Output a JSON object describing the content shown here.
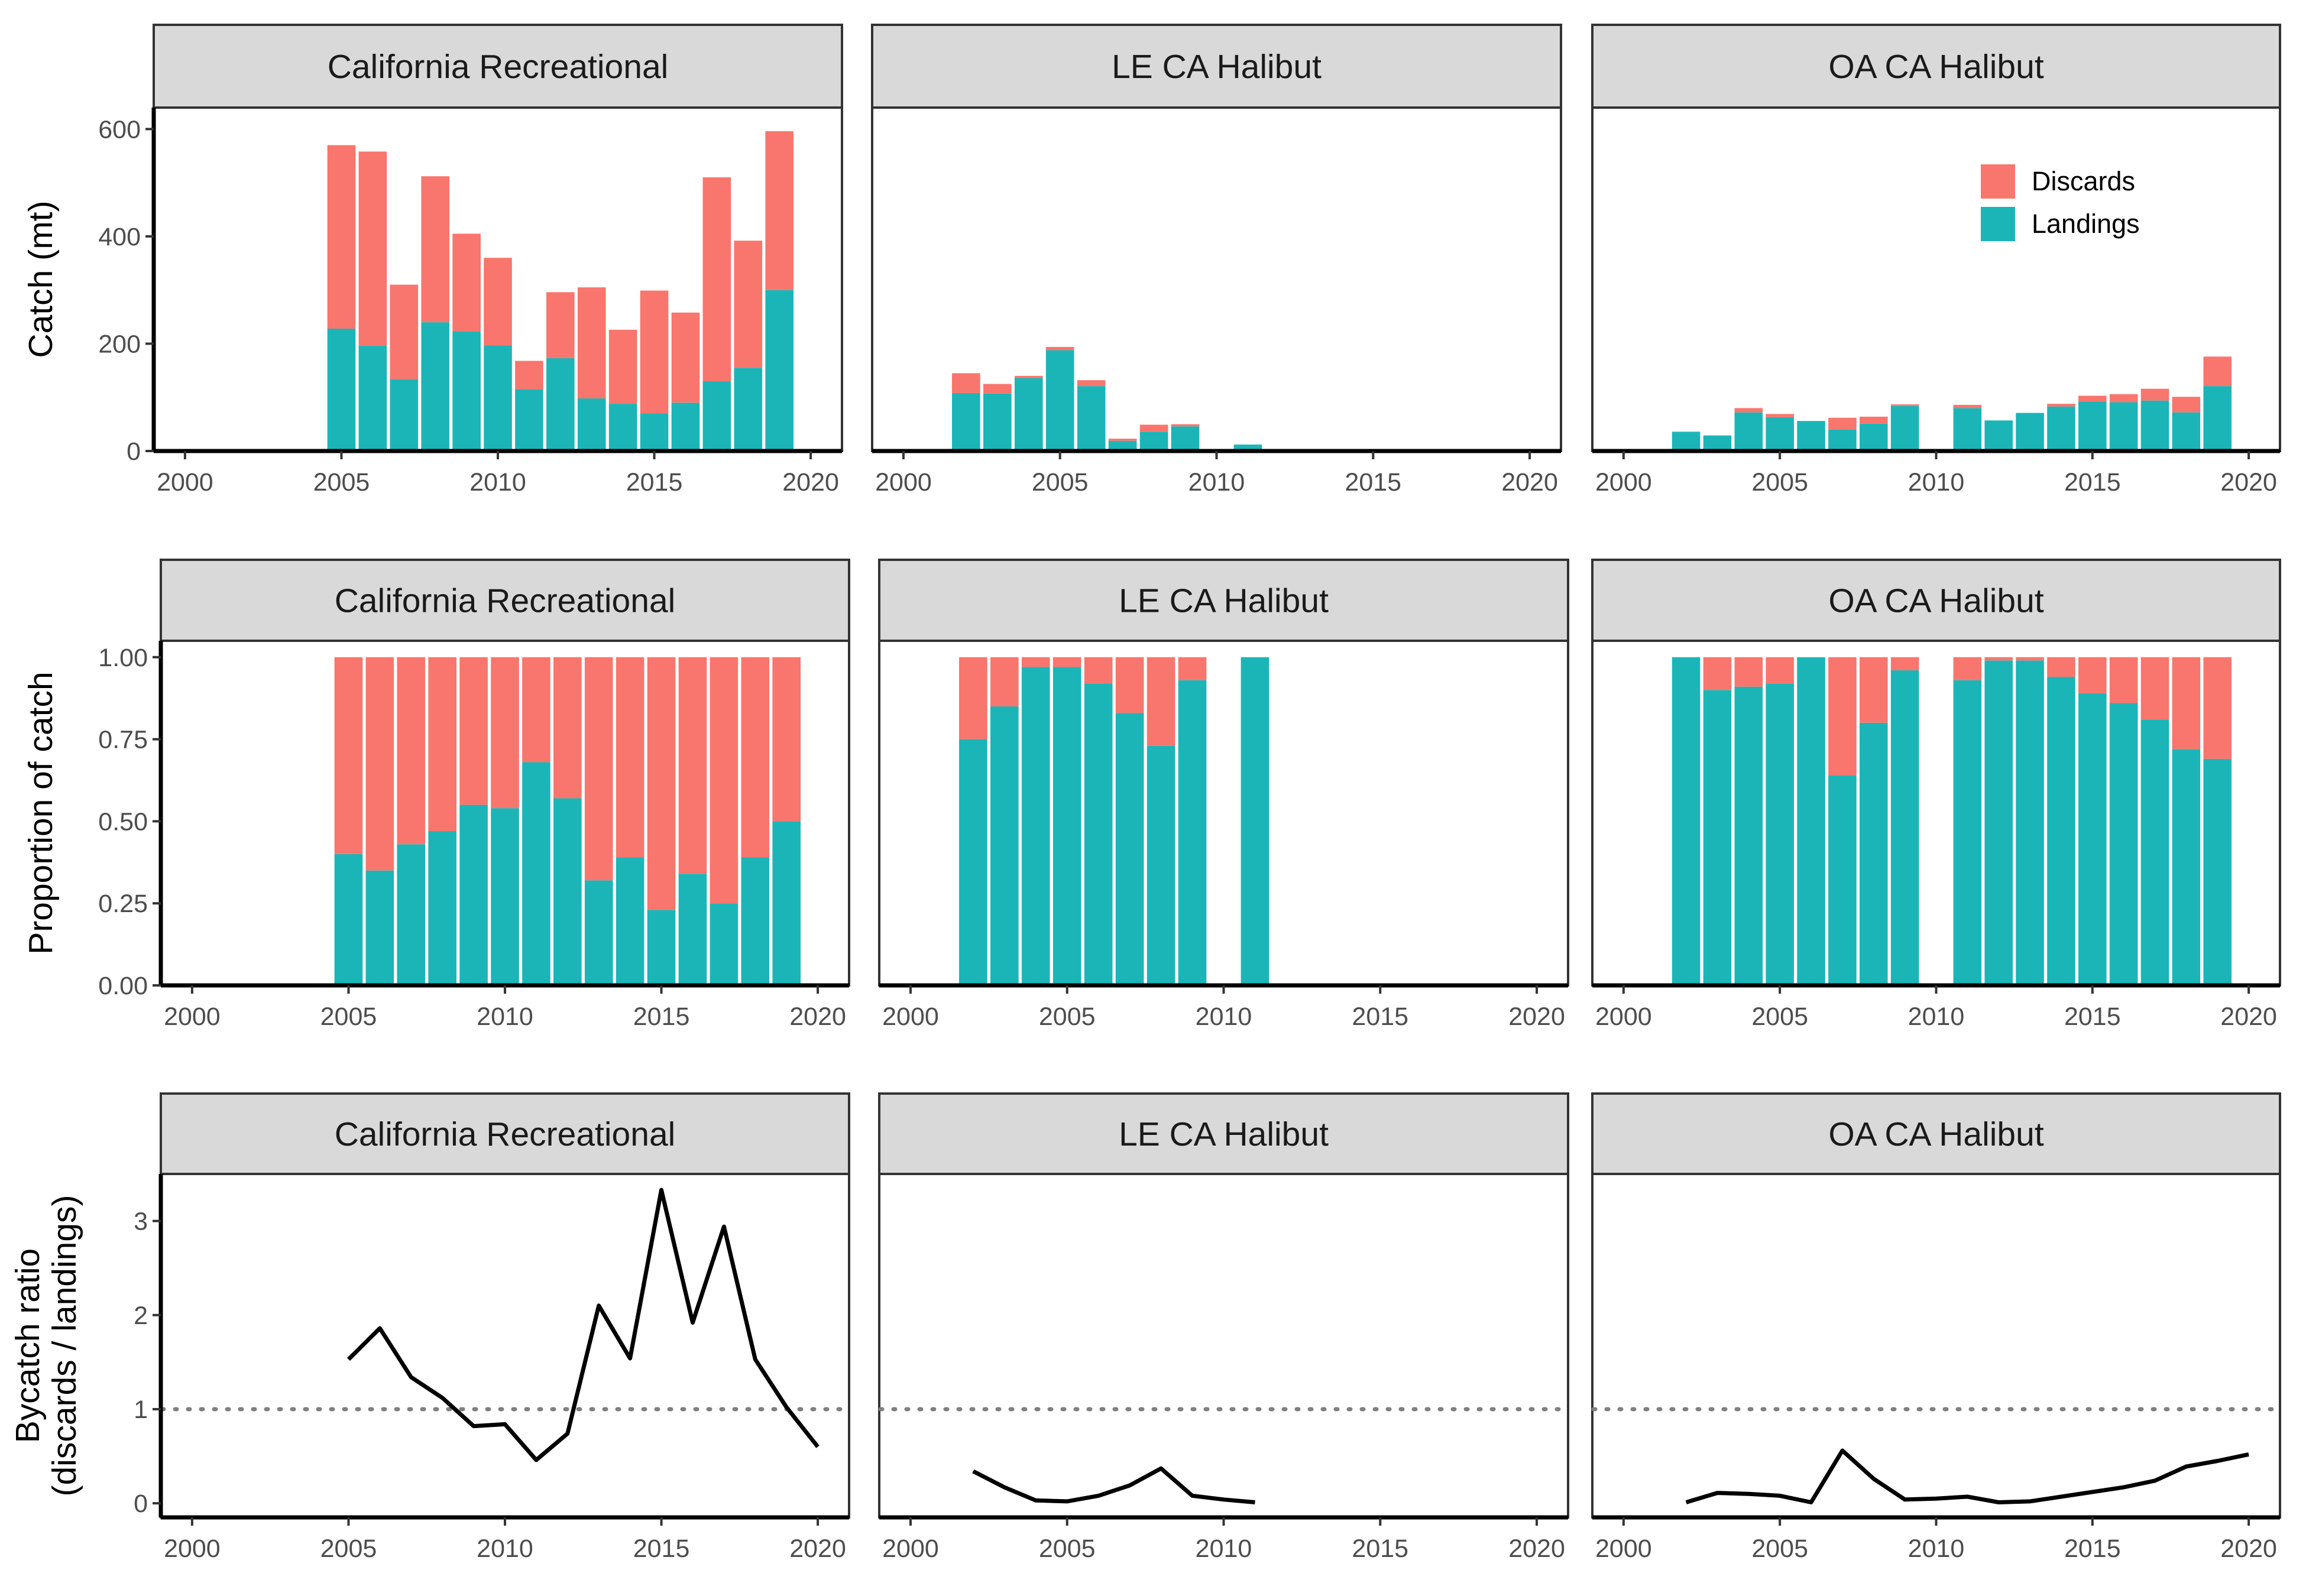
{
  "colors": {
    "discards": "#F8766D",
    "landings": "#1BB5B8",
    "strip_fill": "#D9D9D9",
    "reference_line": "#7f7f7f"
  },
  "legend": {
    "placement": "top-right of OA CA Halibut catch panel",
    "entries": [
      "Discards",
      "Landings"
    ]
  },
  "panel_titles": [
    "California Recreational",
    "LE CA Halibut",
    "OA CA Halibut"
  ],
  "x_axis": {
    "range": [
      1999,
      2021
    ],
    "ticks": [
      2000,
      2005,
      2010,
      2015,
      2020
    ]
  },
  "chart_data": [
    {
      "type": "bar",
      "stacked": true,
      "ylabel": "Catch (mt)",
      "ylim": [
        0,
        640
      ],
      "yticks": [
        0,
        200,
        400,
        600
      ],
      "yticklabels": [
        "0",
        "200",
        "400",
        "600"
      ],
      "facets": [
        {
          "title": "California Recreational",
          "x": [
            2005,
            2006,
            2007,
            2008,
            2009,
            2010,
            2011,
            2012,
            2013,
            2014,
            2015,
            2016,
            2017,
            2018,
            2019
          ],
          "series": [
            {
              "name": "Landings",
              "values": [
                228,
                196,
                134,
                240,
                223,
                197,
                115,
                173,
                98,
                88,
                70,
                90,
                130,
                155,
                300
              ]
            },
            {
              "name": "Discards",
              "values": [
                342,
                362,
                176,
                272,
                182,
                163,
                53,
                123,
                207,
                138,
                229,
                168,
                380,
                237,
                296
              ]
            }
          ]
        },
        {
          "title": "LE CA Halibut",
          "x": [
            2002,
            2003,
            2004,
            2005,
            2006,
            2007,
            2008,
            2009,
            2011
          ],
          "series": [
            {
              "name": "Landings",
              "values": [
                108,
                107,
                136,
                188,
                121,
                19,
                36,
                46,
                12
              ]
            },
            {
              "name": "Discards",
              "values": [
                37,
                18,
                4,
                6,
                11,
                4,
                13,
                4,
                0
              ]
            }
          ]
        },
        {
          "title": "OA CA Halibut",
          "legend": [
            "Discards",
            "Landings"
          ],
          "x": [
            2002,
            2003,
            2004,
            2005,
            2006,
            2007,
            2008,
            2009,
            2011,
            2012,
            2013,
            2014,
            2015,
            2016,
            2017,
            2018,
            2019
          ],
          "series": [
            {
              "name": "Landings",
              "values": [
                36,
                29,
                72,
                63,
                56,
                40,
                51,
                84,
                80,
                57,
                71,
                83,
                92,
                91,
                94,
                72,
                121
              ]
            },
            {
              "name": "Discards",
              "values": [
                0,
                0,
                8,
                6,
                0,
                22,
                13,
                3,
                6,
                0,
                0,
                5,
                11,
                15,
                22,
                29,
                55
              ]
            }
          ]
        }
      ]
    },
    {
      "type": "bar",
      "stacked": true,
      "ylabel": "Proportion of catch",
      "ylim": [
        0,
        1.05
      ],
      "yticks": [
        0,
        0.25,
        0.5,
        0.75,
        1
      ],
      "yticklabels": [
        "0.00",
        "0.25",
        "0.50",
        "0.75",
        "1.00"
      ],
      "facets": [
        {
          "title": "California Recreational",
          "x": [
            2005,
            2006,
            2007,
            2008,
            2009,
            2010,
            2011,
            2012,
            2013,
            2014,
            2015,
            2016,
            2017,
            2018,
            2019
          ],
          "series": [
            {
              "name": "Landings",
              "values": [
                0.4,
                0.35,
                0.43,
                0.47,
                0.55,
                0.54,
                0.68,
                0.57,
                0.32,
                0.39,
                0.23,
                0.34,
                0.25,
                0.39,
                0.5
              ]
            },
            {
              "name": "Discards",
              "values": [
                0.6,
                0.65,
                0.57,
                0.53,
                0.45,
                0.46,
                0.32,
                0.43,
                0.68,
                0.61,
                0.77,
                0.66,
                0.75,
                0.61,
                0.5
              ]
            }
          ]
        },
        {
          "title": "LE CA Halibut",
          "x": [
            2002,
            2003,
            2004,
            2005,
            2006,
            2007,
            2008,
            2009,
            2011
          ],
          "series": [
            {
              "name": "Landings",
              "values": [
                0.75,
                0.85,
                0.97,
                0.97,
                0.92,
                0.83,
                0.73,
                0.93,
                1.0
              ]
            },
            {
              "name": "Discards",
              "values": [
                0.25,
                0.15,
                0.03,
                0.03,
                0.08,
                0.17,
                0.27,
                0.07,
                0.0
              ]
            }
          ]
        },
        {
          "title": "OA CA Halibut",
          "x": [
            2002,
            2003,
            2004,
            2005,
            2006,
            2007,
            2008,
            2009,
            2011,
            2012,
            2013,
            2014,
            2015,
            2016,
            2017,
            2018,
            2019
          ],
          "series": [
            {
              "name": "Landings",
              "values": [
                1.0,
                0.9,
                0.91,
                0.92,
                1.0,
                0.64,
                0.8,
                0.96,
                0.93,
                0.99,
                0.99,
                0.94,
                0.89,
                0.86,
                0.81,
                0.72,
                0.69
              ]
            },
            {
              "name": "Discards",
              "values": [
                0.0,
                0.1,
                0.09,
                0.08,
                0.0,
                0.36,
                0.2,
                0.04,
                0.07,
                0.01,
                0.01,
                0.06,
                0.11,
                0.14,
                0.19,
                0.28,
                0.31
              ]
            }
          ]
        }
      ]
    },
    {
      "type": "line",
      "ylabel": "Bycatch ratio\n(discards / landings)",
      "ylim": [
        -0.15,
        3.5
      ],
      "yticks": [
        0,
        1,
        2,
        3
      ],
      "yticklabels": [
        "0",
        "1",
        "2",
        "3"
      ],
      "reference_line": {
        "y": 1,
        "style": "dotted"
      },
      "facets": [
        {
          "title": "California Recreational",
          "x": [
            2005,
            2006,
            2007,
            2008,
            2009,
            2010,
            2011,
            2012,
            2013,
            2014,
            2015,
            2016,
            2017,
            2018,
            2019,
            2020
          ],
          "y": [
            1.53,
            1.86,
            1.34,
            1.12,
            0.82,
            0.84,
            0.46,
            0.74,
            2.1,
            1.54,
            3.33,
            1.92,
            2.94,
            1.53,
            1.02,
            0.6
          ]
        },
        {
          "title": "LE CA Halibut",
          "x": [
            2002,
            2003,
            2004,
            2005,
            2006,
            2007,
            2008,
            2009,
            2010,
            2011
          ],
          "y": [
            0.34,
            0.17,
            0.03,
            0.02,
            0.08,
            0.19,
            0.37,
            0.08,
            0.04,
            0.01
          ]
        },
        {
          "title": "OA CA Halibut",
          "x": [
            2002,
            2003,
            2004,
            2005,
            2006,
            2007,
            2008,
            2009,
            2010,
            2011,
            2012,
            2013,
            2014,
            2015,
            2016,
            2017,
            2018,
            2019,
            2020
          ],
          "y": [
            0.01,
            0.11,
            0.1,
            0.08,
            0.01,
            0.56,
            0.26,
            0.04,
            0.05,
            0.07,
            0.01,
            0.02,
            0.07,
            0.12,
            0.17,
            0.24,
            0.39,
            0.45,
            0.52
          ]
        }
      ]
    }
  ]
}
